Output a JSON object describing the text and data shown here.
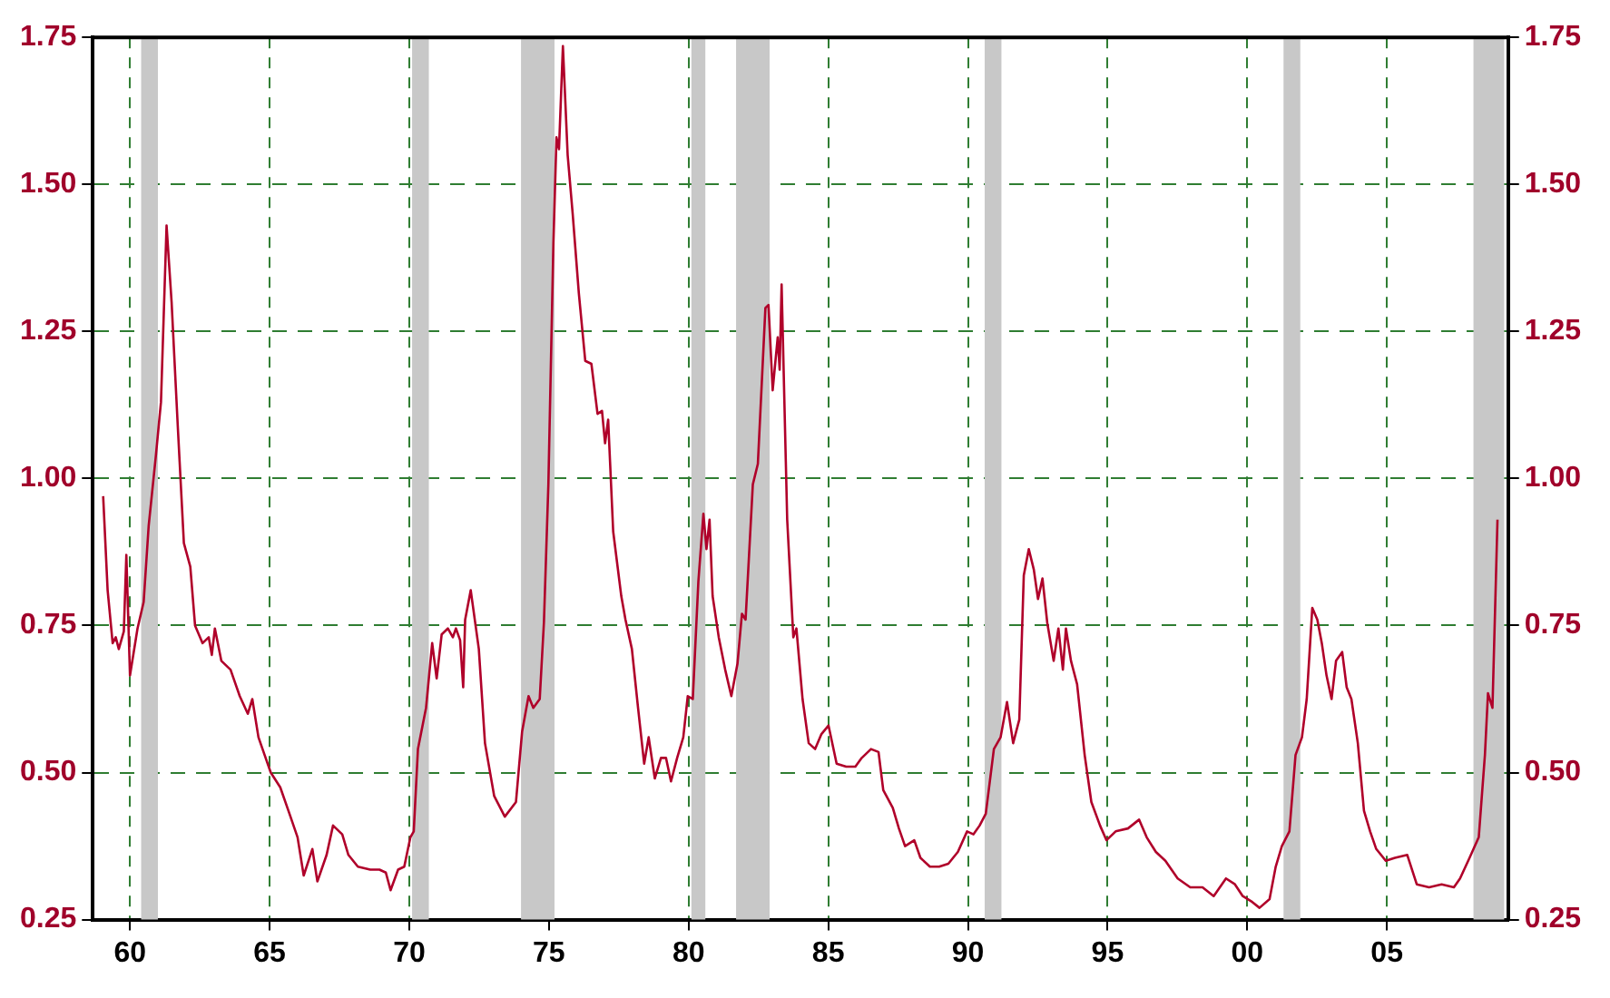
{
  "chart_data": {
    "type": "line",
    "x": [
      1959.04,
      1959.2,
      1959.38,
      1959.49,
      1959.6,
      1959.78,
      1959.87,
      1960.0,
      1960.27,
      1960.49,
      1960.67,
      1960.93,
      1961.11,
      1961.31,
      1961.49,
      1961.71,
      1961.93,
      1962.16,
      1962.33,
      1962.6,
      1962.82,
      1962.93,
      1963.04,
      1963.27,
      1963.6,
      1963.93,
      1964.22,
      1964.38,
      1964.6,
      1964.82,
      1965.04,
      1965.38,
      1965.71,
      1966.0,
      1966.22,
      1966.53,
      1966.71,
      1967.04,
      1967.27,
      1967.6,
      1967.82,
      1968.16,
      1968.6,
      1968.93,
      1969.16,
      1969.33,
      1969.6,
      1969.82,
      1970.04,
      1970.16,
      1970.31,
      1970.6,
      1970.82,
      1970.98,
      1971.16,
      1971.38,
      1971.56,
      1971.67,
      1971.82,
      1971.93,
      1972.0,
      1972.2,
      1972.49,
      1972.71,
      1973.04,
      1973.42,
      1973.82,
      1974.04,
      1974.27,
      1974.44,
      1974.67,
      1974.82,
      1974.98,
      1975.16,
      1975.27,
      1975.36,
      1975.5,
      1975.67,
      1975.85,
      1976.07,
      1976.3,
      1976.52,
      1976.74,
      1976.9,
      1977.01,
      1977.12,
      1977.3,
      1977.59,
      1977.74,
      1977.97,
      1978.19,
      1978.41,
      1978.57,
      1978.79,
      1979.01,
      1979.19,
      1979.37,
      1979.59,
      1979.81,
      1979.97,
      1980.15,
      1980.35,
      1980.53,
      1980.64,
      1980.75,
      1980.86,
      1981.08,
      1981.31,
      1981.53,
      1981.75,
      1981.91,
      1982.04,
      1982.3,
      1982.48,
      1982.75,
      1982.86,
      1983.01,
      1983.19,
      1983.26,
      1983.33,
      1983.53,
      1983.75,
      1983.86,
      1984.08,
      1984.3,
      1984.53,
      1984.75,
      1985.01,
      1985.3,
      1985.64,
      1985.97,
      1986.2,
      1986.53,
      1986.8,
      1986.97,
      1987.31,
      1987.53,
      1987.75,
      1988.08,
      1988.3,
      1988.64,
      1988.97,
      1989.3,
      1989.64,
      1989.97,
      1990.2,
      1990.42,
      1990.64,
      1990.93,
      1991.17,
      1991.4,
      1991.62,
      1991.84,
      1992.0,
      1992.18,
      1992.36,
      1992.51,
      1992.67,
      1992.84,
      1993.07,
      1993.24,
      1993.4,
      1993.51,
      1993.69,
      1993.91,
      1994.18,
      1994.42,
      1994.73,
      1994.96,
      1995.29,
      1995.73,
      1996.13,
      1996.4,
      1996.73,
      1997.07,
      1997.51,
      1997.96,
      1998.4,
      1998.8,
      1999.24,
      1999.56,
      1999.84,
      2000.18,
      2000.44,
      2000.8,
      2001.02,
      2001.24,
      2001.51,
      2001.73,
      2001.96,
      2002.13,
      2002.33,
      2002.51,
      2002.67,
      2002.84,
      2003.02,
      2003.18,
      2003.4,
      2003.56,
      2003.73,
      2003.96,
      2004.18,
      2004.4,
      2004.62,
      2004.96,
      2005.29,
      2005.73,
      2006.07,
      2006.51,
      2006.96,
      2007.4,
      2007.62,
      2007.96,
      2008.29,
      2008.51,
      2008.62,
      2008.78,
      2008.96
    ],
    "series": [
      {
        "color": "#b0002a",
        "values": [
          0.97,
          0.81,
          0.72,
          0.73,
          0.71,
          0.74,
          0.87,
          0.665,
          0.745,
          0.79,
          0.92,
          1.04,
          1.13,
          1.43,
          1.3,
          1.09,
          0.89,
          0.85,
          0.75,
          0.72,
          0.73,
          0.7,
          0.745,
          0.69,
          0.675,
          0.63,
          0.6,
          0.625,
          0.56,
          0.53,
          0.5,
          0.475,
          0.43,
          0.39,
          0.325,
          0.37,
          0.315,
          0.36,
          0.41,
          0.395,
          0.36,
          0.34,
          0.335,
          0.335,
          0.33,
          0.3,
          0.335,
          0.34,
          0.39,
          0.4,
          0.54,
          0.61,
          0.72,
          0.66,
          0.735,
          0.745,
          0.73,
          0.745,
          0.725,
          0.645,
          0.76,
          0.81,
          0.71,
          0.55,
          0.46,
          0.425,
          0.45,
          0.57,
          0.63,
          0.61,
          0.625,
          0.755,
          0.99,
          1.4,
          1.58,
          1.56,
          1.735,
          1.55,
          1.45,
          1.315,
          1.2,
          1.195,
          1.11,
          1.115,
          1.06,
          1.1,
          0.91,
          0.8,
          0.76,
          0.71,
          0.61,
          0.515,
          0.56,
          0.49,
          0.525,
          0.525,
          0.485,
          0.525,
          0.56,
          0.63,
          0.625,
          0.825,
          0.94,
          0.88,
          0.93,
          0.8,
          0.73,
          0.675,
          0.63,
          0.685,
          0.77,
          0.76,
          0.99,
          1.025,
          1.29,
          1.295,
          1.15,
          1.24,
          1.185,
          1.33,
          0.93,
          0.73,
          0.745,
          0.625,
          0.55,
          0.54,
          0.565,
          0.58,
          0.515,
          0.51,
          0.51,
          0.525,
          0.54,
          0.535,
          0.47,
          0.44,
          0.405,
          0.375,
          0.385,
          0.355,
          0.34,
          0.34,
          0.345,
          0.365,
          0.4,
          0.395,
          0.41,
          0.43,
          0.54,
          0.56,
          0.62,
          0.55,
          0.59,
          0.835,
          0.88,
          0.845,
          0.795,
          0.83,
          0.755,
          0.69,
          0.745,
          0.675,
          0.745,
          0.69,
          0.65,
          0.53,
          0.45,
          0.41,
          0.385,
          0.4,
          0.405,
          0.42,
          0.39,
          0.365,
          0.35,
          0.32,
          0.305,
          0.305,
          0.29,
          0.32,
          0.31,
          0.29,
          0.28,
          0.27,
          0.285,
          0.34,
          0.375,
          0.4,
          0.53,
          0.56,
          0.625,
          0.78,
          0.76,
          0.72,
          0.665,
          0.625,
          0.69,
          0.705,
          0.645,
          0.625,
          0.55,
          0.435,
          0.4,
          0.37,
          0.35,
          0.355,
          0.36,
          0.31,
          0.305,
          0.31,
          0.305,
          0.32,
          0.355,
          0.39,
          0.53,
          0.635,
          0.61,
          0.93
        ]
      }
    ],
    "xlim": [
      1958.67,
      2009.34
    ],
    "xticks": [
      {
        "value": 1960,
        "label": "60"
      },
      {
        "value": 1965,
        "label": "65"
      },
      {
        "value": 1970,
        "label": "70"
      },
      {
        "value": 1975,
        "label": "75"
      },
      {
        "value": 1980,
        "label": "80"
      },
      {
        "value": 1985,
        "label": "85"
      },
      {
        "value": 1990,
        "label": "90"
      },
      {
        "value": 1995,
        "label": "95"
      },
      {
        "value": 2000,
        "label": "00"
      },
      {
        "value": 2005,
        "label": "05"
      }
    ],
    "ylim": [
      0.25,
      1.75
    ],
    "yticks": [
      {
        "value": 0.25,
        "label": "0.25"
      },
      {
        "value": 0.5,
        "label": "0.50"
      },
      {
        "value": 0.75,
        "label": "0.75"
      },
      {
        "value": 1,
        "label": "1.00"
      },
      {
        "value": 1.25,
        "label": "1.25"
      },
      {
        "value": 1.5,
        "label": "1.50"
      },
      {
        "value": 1.75,
        "label": "1.75"
      }
    ],
    "y2lim": [
      0.25,
      1.75
    ],
    "y2ticks": [
      {
        "value": 0.25,
        "label": "0.25"
      },
      {
        "value": 0.5,
        "label": "0.50"
      },
      {
        "value": 0.75,
        "label": "0.75"
      },
      {
        "value": 1,
        "label": "1.00"
      },
      {
        "value": 1.25,
        "label": "1.25"
      },
      {
        "value": 1.5,
        "label": "1.50"
      },
      {
        "value": 1.75,
        "label": "1.75"
      }
    ],
    "bands": [
      {
        "axis": "x",
        "from": 1960.4,
        "to": 1961.0,
        "color": "#c8c8c8"
      },
      {
        "axis": "x",
        "from": 1970.1,
        "to": 1970.7,
        "color": "#c8c8c8"
      },
      {
        "axis": "x",
        "from": 1974.0,
        "to": 1975.2,
        "color": "#c8c8c8"
      },
      {
        "axis": "x",
        "from": 1980.1,
        "to": 1980.6,
        "color": "#c8c8c8"
      },
      {
        "axis": "x",
        "from": 1981.7,
        "to": 1982.9,
        "color": "#c8c8c8"
      },
      {
        "axis": "x",
        "from": 1990.6,
        "to": 1991.2,
        "color": "#c8c8c8"
      },
      {
        "axis": "x",
        "from": 2001.3,
        "to": 2001.9,
        "color": "#c8c8c8"
      },
      {
        "axis": "x",
        "from": 2008.1,
        "to": 2009.2,
        "color": "#c8c8c8"
      }
    ],
    "grid": true,
    "legend": false,
    "marker": "none",
    "line_style": "solid"
  }
}
